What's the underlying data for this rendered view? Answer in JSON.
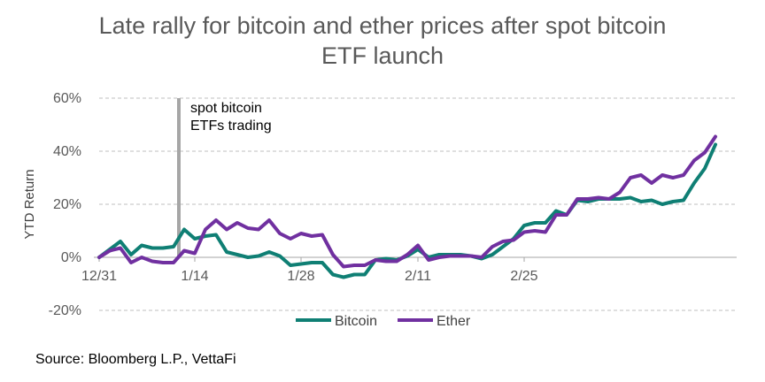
{
  "chart_data": {
    "type": "line",
    "title_line1": "Late rally for bitcoin and ether prices after spot bitcoin",
    "title_line2": "ETF launch",
    "xlabel": "",
    "ylabel": "YTD Return",
    "ylim": [
      -20,
      60
    ],
    "yticks": [
      -20,
      0,
      20,
      40,
      60
    ],
    "ytick_labels": [
      "-20%",
      "0%",
      "20%",
      "40%",
      "60%"
    ],
    "x_tick_labels": [
      {
        "index": 0,
        "label": "12/31"
      },
      {
        "index": 9,
        "label": "1/14"
      },
      {
        "index": 19,
        "label": "1/28"
      },
      {
        "index": 30,
        "label": "2/11"
      },
      {
        "index": 40,
        "label": "2/25"
      }
    ],
    "grid": true,
    "legend_position": "bottom",
    "annotation": {
      "index": 7,
      "line1": "spot bitcoin",
      "line2": "ETFs trading",
      "color": "#a6a6a6"
    },
    "series": [
      {
        "name": "Bitcoin",
        "color": "#0f7f74",
        "values": [
          0,
          3,
          6,
          1,
          4.5,
          3.5,
          3.5,
          4,
          10.5,
          7,
          8,
          8.5,
          2,
          1,
          0,
          0.5,
          2,
          0.5,
          -3,
          -2.5,
          -2,
          -2,
          -6.5,
          -7.5,
          -6.5,
          -6.5,
          -1,
          -0.5,
          -1,
          0.5,
          3,
          0,
          1,
          1,
          1,
          0.5,
          -0.5,
          1,
          4,
          7,
          12,
          13,
          13,
          17.5,
          16,
          21.5,
          21,
          22,
          22,
          22,
          22.5,
          21,
          21.5,
          20,
          21,
          21.5,
          28,
          33.5,
          42.5
        ]
      },
      {
        "name": "Ether",
        "color": "#7030a0",
        "values": [
          0,
          2.5,
          3.5,
          -2,
          0,
          -1.5,
          -2,
          -2,
          2.5,
          1.5,
          10.5,
          14,
          10.5,
          13,
          11,
          10.5,
          14,
          9,
          7,
          9,
          8,
          8.5,
          1,
          -3.5,
          -3,
          -3,
          -1,
          -1.5,
          -1.5,
          1,
          4.5,
          -1,
          0,
          0.5,
          0.5,
          0.5,
          0,
          4,
          6,
          6.5,
          9.5,
          10,
          9.5,
          16,
          16,
          22,
          22,
          22.5,
          22,
          24.5,
          30,
          31,
          28,
          31,
          30,
          31,
          36.5,
          39.5,
          45.5
        ]
      }
    ]
  },
  "source": "Source: Bloomberg L.P., VettaFi"
}
